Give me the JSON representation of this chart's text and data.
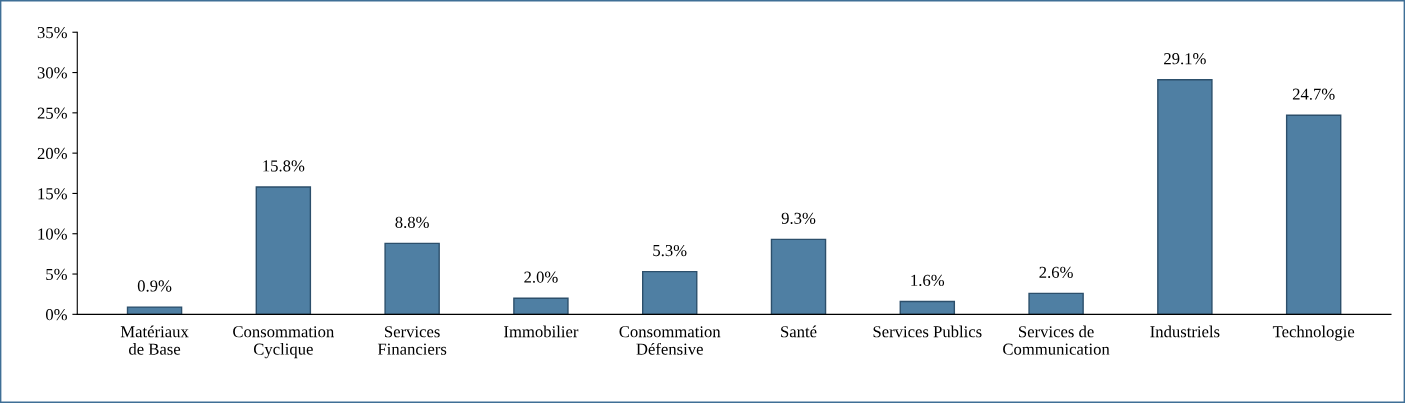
{
  "chart_data": {
    "type": "bar",
    "categories": [
      "Matériaux de Base",
      "Consommation Cyclique",
      "Services Financiers",
      "Immobilier",
      "Consommation Défensive",
      "Santé",
      "Services Publics",
      "Services de Communication",
      "Industriels",
      "Technologie"
    ],
    "values": [
      0.9,
      15.8,
      8.8,
      2.0,
      5.3,
      9.3,
      1.6,
      2.6,
      29.1,
      24.7
    ],
    "value_labels": [
      "0.9%",
      "15.8%",
      "8.8%",
      "2.0%",
      "5.3%",
      "9.3%",
      "1.6%",
      "2.6%",
      "29.1%",
      "24.7%"
    ],
    "color": "#4f7fa3",
    "ylim": [
      0,
      35
    ],
    "yticks": [
      {
        "value": 0,
        "label": "0%"
      },
      {
        "value": 5,
        "label": "5%"
      },
      {
        "value": 10,
        "label": "10%"
      },
      {
        "value": 15,
        "label": "15%"
      },
      {
        "value": 20,
        "label": "20%"
      },
      {
        "value": 25,
        "label": "25%"
      },
      {
        "value": 30,
        "label": "30%"
      },
      {
        "value": 35,
        "label": "35%"
      }
    ],
    "grid": false,
    "legend": false
  }
}
